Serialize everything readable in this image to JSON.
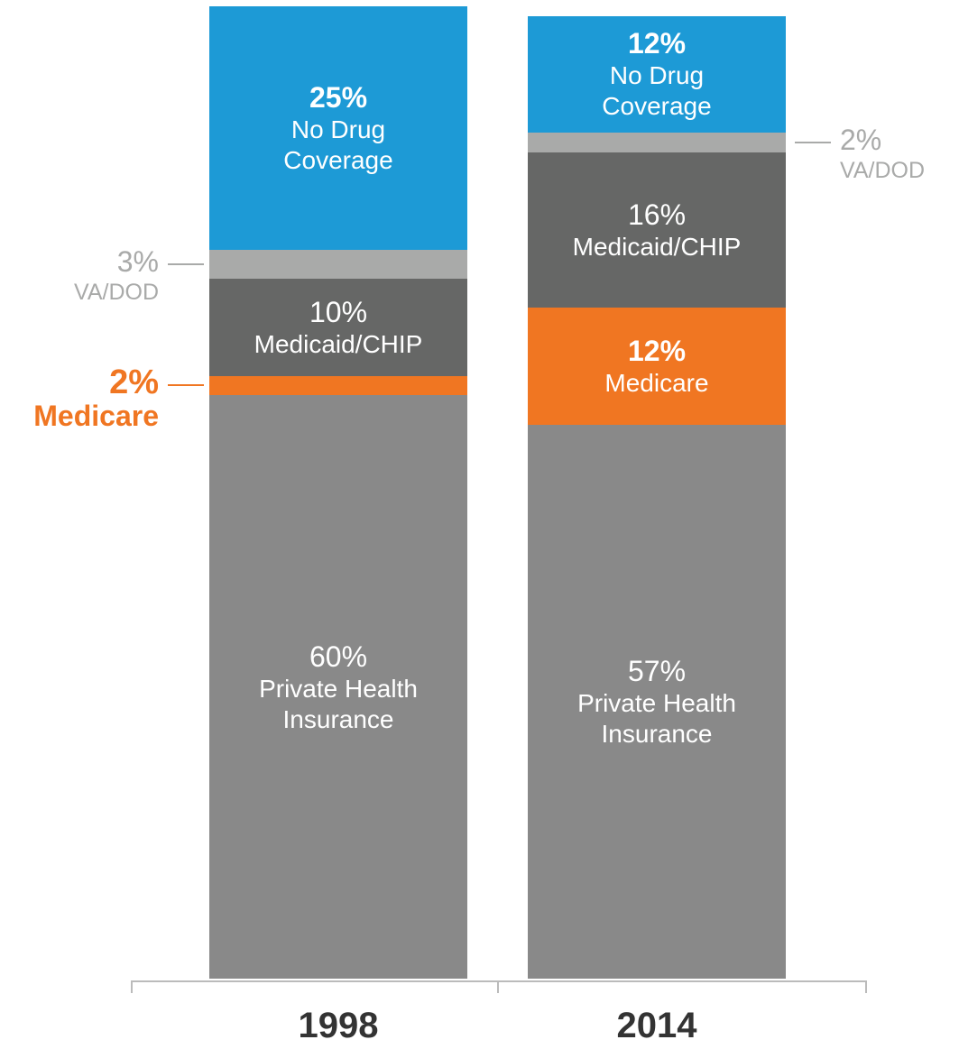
{
  "chart_data": {
    "type": "stacked-bar",
    "categories": [
      "1998",
      "2014"
    ],
    "ylim": [
      0,
      100
    ],
    "series": [
      {
        "name": "Private Health Insurance",
        "color": "#898989",
        "values": [
          60,
          57
        ],
        "value_labels": [
          "60%",
          "57%"
        ]
      },
      {
        "name": "Medicare",
        "color": "#f07622",
        "values": [
          2,
          12
        ],
        "value_labels": [
          "2%",
          "12%"
        ]
      },
      {
        "name": "Medicaid/CHIP",
        "color": "#666766",
        "values": [
          10,
          16
        ],
        "value_labels": [
          "10%",
          "16%"
        ]
      },
      {
        "name": "VA/DOD",
        "color": "#a9aaa9",
        "values": [
          3,
          2
        ],
        "value_labels": [
          "3%",
          "2%"
        ]
      },
      {
        "name": "No Drug Coverage",
        "color": "#1d9ad6",
        "values": [
          25,
          12
        ],
        "value_labels": [
          "25%",
          "12%"
        ]
      }
    ]
  }
}
